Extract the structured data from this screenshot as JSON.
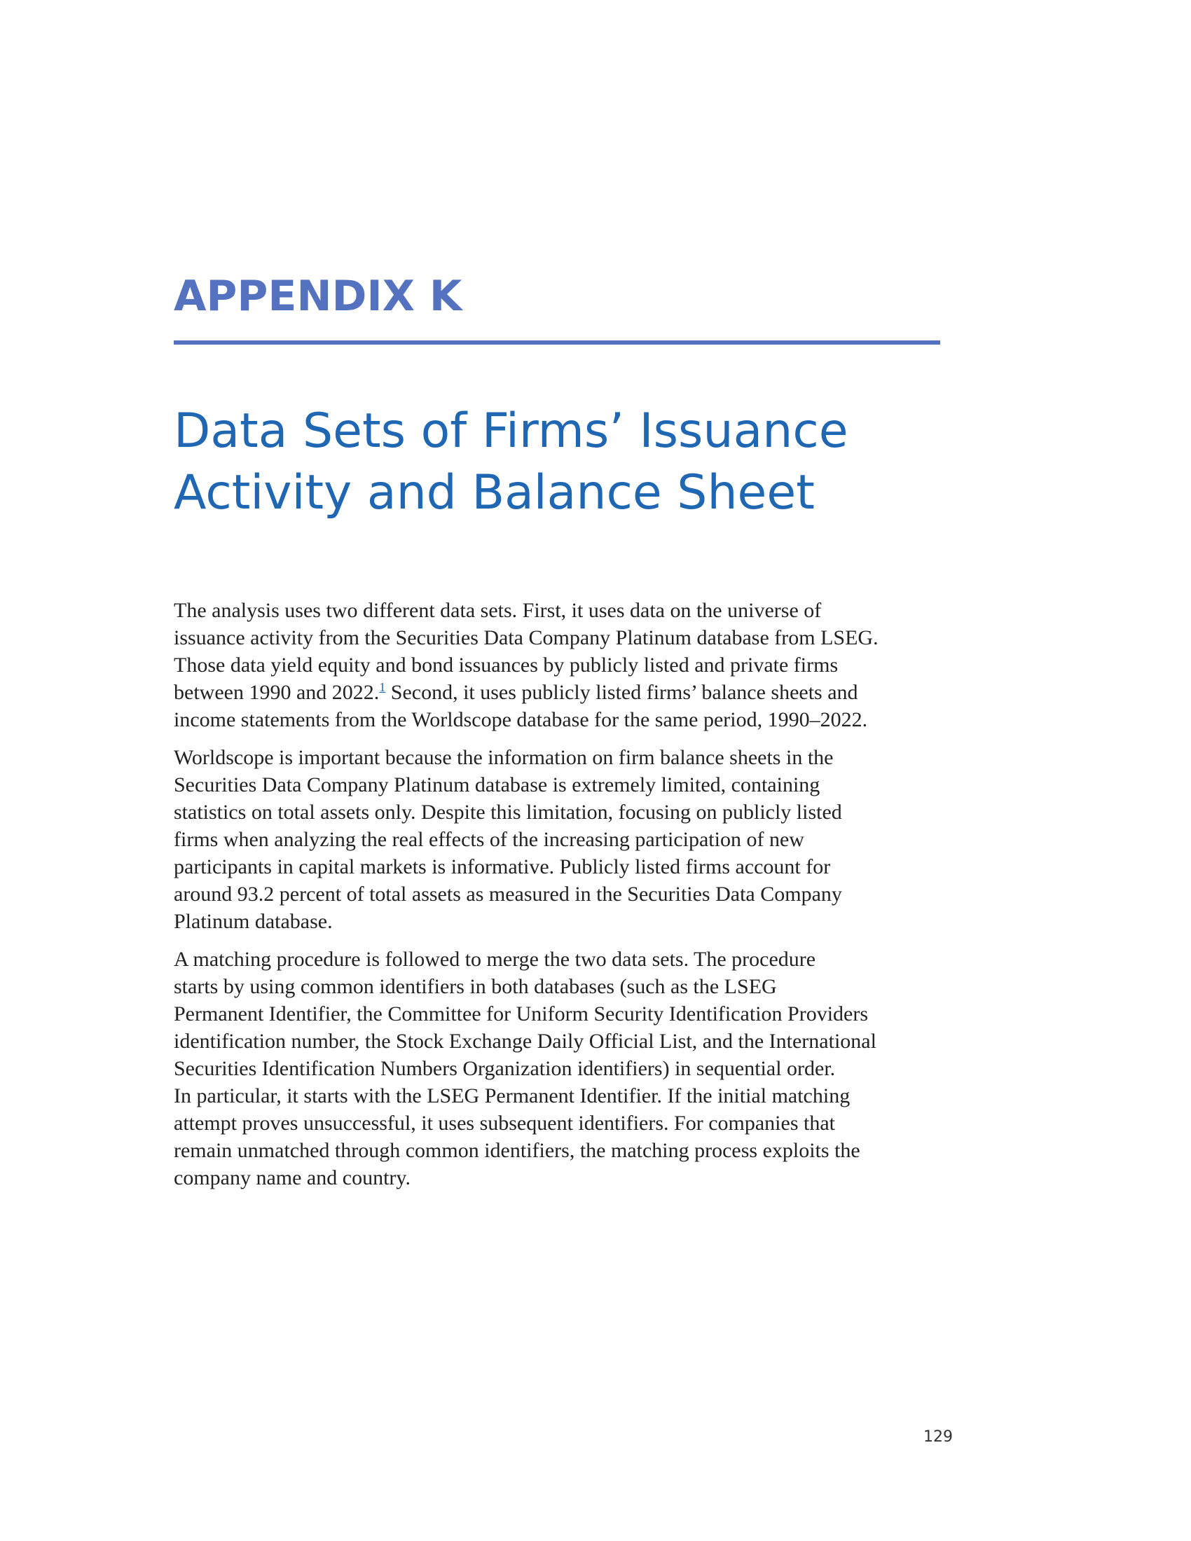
{
  "appendix": {
    "label": "APPENDIX K"
  },
  "title": {
    "lines": [
      "Data Sets of Firms’ Issuance",
      "Activity and Balance Sheet"
    ]
  },
  "paragraphs": [
    {
      "lines": [
        "The analysis uses two different data sets. First, it uses data on the universe of",
        "issuance activity from the Securities Data Company Platinum database from LSEG.",
        "Those data yield equity and bond issuances by publicly listed and private firms"
      ],
      "line4_before": "between 1990 and 2022.",
      "footnote_ref": "1",
      "line4_after": " Second, it uses publicly listed firms’ balance sheets and",
      "line5": "income statements from the Worldscope database for the same period, 1990–2022."
    },
    {
      "lines": [
        "Worldscope is important because the information on firm balance sheets in the",
        "Securities Data Company Platinum database is extremely limited, containing",
        "statistics on total assets only. Despite this limitation, focusing on publicly listed",
        "firms when analyzing the real effects of the increasing participation of new",
        "participants in capital markets is informative. Publicly listed firms account for",
        "around 93.2 percent of total assets as measured in the Securities Data Company",
        "Platinum database."
      ]
    },
    {
      "lines": [
        "A matching procedure is followed to merge the two data sets. The procedure",
        "starts by using common identifiers in both databases (such as the LSEG",
        "Permanent Identifier, the Committee for Uniform Security Identification Providers",
        "identification number, the Stock Exchange Daily Official List, and the International",
        "Securities Identification Numbers Organization identifiers) in sequential order.",
        "In particular, it starts with the LSEG Permanent Identifier. If the initial matching",
        "attempt proves unsuccessful, it uses subsequent identifiers. For companies that",
        "remain unmatched through common identifiers, the matching process exploits the",
        "company name and country."
      ]
    }
  ],
  "page_number": "129",
  "colors": {
    "appendix_label": "#5472c0",
    "title": "#1f66b3",
    "body_text": "#222222"
  }
}
